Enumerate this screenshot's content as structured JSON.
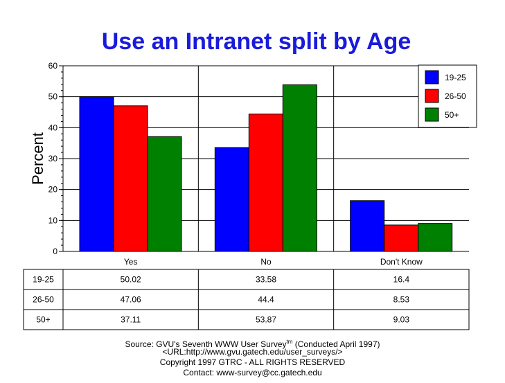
{
  "chart_data": {
    "type": "bar",
    "title": "Use an Intranet split by Age",
    "ylabel": "Percent",
    "xlabel": "",
    "ylim": [
      0,
      60
    ],
    "yticks": [
      0,
      10,
      20,
      30,
      40,
      50,
      60
    ],
    "grid": true,
    "legend_position": "top-right",
    "categories": [
      "Yes",
      "No",
      "Don't Know"
    ],
    "series": [
      {
        "name": "19-25",
        "color": "#0000ff",
        "values": [
          50.02,
          33.58,
          16.4
        ],
        "labels": [
          "50.02",
          "33.58",
          "16.4"
        ]
      },
      {
        "name": "26-50",
        "color": "#ff0000",
        "values": [
          47.06,
          44.4,
          8.53
        ],
        "labels": [
          "47.06",
          "44.4",
          "8.53"
        ]
      },
      {
        "name": "50+",
        "color": "#008000",
        "values": [
          37.11,
          53.87,
          9.03
        ],
        "labels": [
          "37.11",
          "53.87",
          "9.03"
        ]
      }
    ]
  },
  "footer": {
    "source_prefix": "Source: GVU's Seventh WWW User Survey",
    "source_sup": "tm",
    "source_suffix": " (Conducted April 1997)",
    "url": "<URL:http://www.gvu.gatech.edu/user_surveys/>",
    "copyright": "Copyright 1997 GTRC - ALL RIGHTS RESERVED",
    "contact": "Contact: www-survey@cc.gatech.edu"
  }
}
